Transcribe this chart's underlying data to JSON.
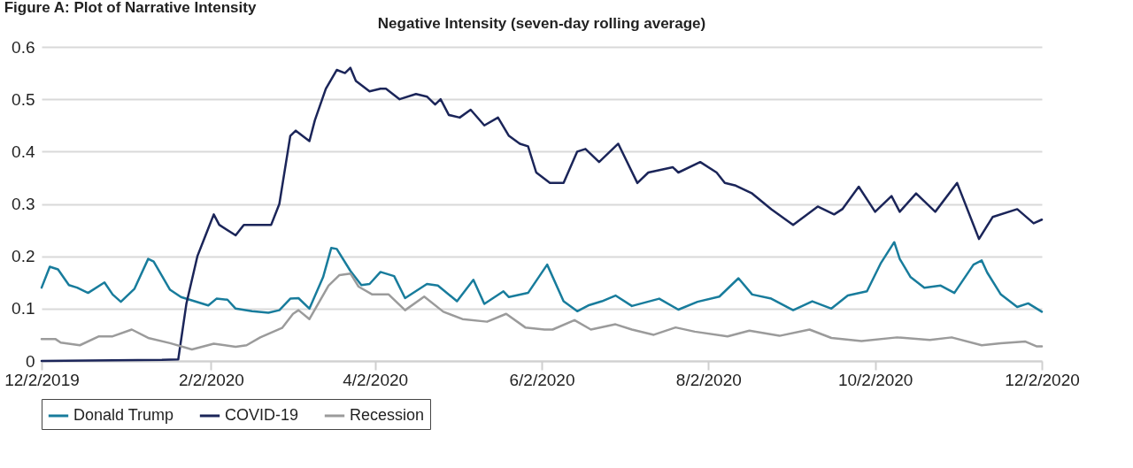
{
  "chart_data": {
    "type": "line",
    "title": "Figure A: Plot of Narrative Intensity",
    "subtitle": "Negative Intensity (seven-day rolling average)",
    "xlim": [
      "2019-12-02",
      "2020-12-02"
    ],
    "xticks": [
      {
        "value": "2019-12-02",
        "label": "12/2/2019"
      },
      {
        "value": "2020-02-02",
        "label": "2/2/2020"
      },
      {
        "value": "2020-04-02",
        "label": "4/2/2020"
      },
      {
        "value": "2020-06-02",
        "label": "6/2/2020"
      },
      {
        "value": "2020-08-02",
        "label": "8/2/2020"
      },
      {
        "value": "2020-10-02",
        "label": "10/2/2020"
      },
      {
        "value": "2020-12-02",
        "label": "12/2/2020"
      }
    ],
    "ylim": [
      0,
      0.6
    ],
    "yticks": [
      0,
      0.1,
      0.2,
      0.3,
      0.4,
      0.5,
      0.6
    ],
    "grid": "y",
    "legend": "bottom",
    "series": [
      {
        "name": "Donald Trump",
        "color": "#187c9c",
        "x": [
          "2019-12-02",
          "2019-12-05",
          "2019-12-08",
          "2019-12-12",
          "2019-12-15",
          "2019-12-19",
          "2019-12-25",
          "2019-12-28",
          "2019-12-31",
          "2020-01-05",
          "2020-01-10",
          "2020-01-12",
          "2020-01-18",
          "2020-01-22",
          "2020-01-27",
          "2020-02-01",
          "2020-02-04",
          "2020-02-08",
          "2020-02-11",
          "2020-02-17",
          "2020-02-23",
          "2020-02-27",
          "2020-03-02",
          "2020-03-05",
          "2020-03-09",
          "2020-03-14",
          "2020-03-17",
          "2020-03-19",
          "2020-03-24",
          "2020-03-28",
          "2020-03-31",
          "2020-04-04",
          "2020-04-09",
          "2020-04-13",
          "2020-04-21",
          "2020-04-25",
          "2020-05-02",
          "2020-05-08",
          "2020-05-12",
          "2020-05-19",
          "2020-05-21",
          "2020-05-28",
          "2020-06-04",
          "2020-06-10",
          "2020-06-15",
          "2020-06-19",
          "2020-06-24",
          "2020-06-29",
          "2020-07-05",
          "2020-07-15",
          "2020-07-22",
          "2020-07-29",
          "2020-08-06",
          "2020-08-13",
          "2020-08-18",
          "2020-08-25",
          "2020-09-02",
          "2020-09-09",
          "2020-09-16",
          "2020-09-22",
          "2020-09-29",
          "2020-10-04",
          "2020-10-09",
          "2020-10-11",
          "2020-10-15",
          "2020-10-20",
          "2020-10-26",
          "2020-10-31",
          "2020-11-07",
          "2020-11-10",
          "2020-11-12",
          "2020-11-17",
          "2020-11-23",
          "2020-11-27",
          "2020-12-02"
        ],
        "values": [
          0.14,
          0.18,
          0.175,
          0.145,
          0.14,
          0.13,
          0.15,
          0.127,
          0.113,
          0.138,
          0.195,
          0.19,
          0.136,
          0.122,
          0.114,
          0.106,
          0.119,
          0.117,
          0.1,
          0.095,
          0.092,
          0.097,
          0.119,
          0.12,
          0.1,
          0.16,
          0.216,
          0.214,
          0.172,
          0.145,
          0.147,
          0.17,
          0.162,
          0.12,
          0.147,
          0.144,
          0.114,
          0.155,
          0.109,
          0.133,
          0.122,
          0.13,
          0.184,
          0.114,
          0.095,
          0.106,
          0.114,
          0.125,
          0.105,
          0.119,
          0.098,
          0.113,
          0.123,
          0.158,
          0.127,
          0.119,
          0.097,
          0.114,
          0.1,
          0.125,
          0.133,
          0.186,
          0.227,
          0.195,
          0.16,
          0.14,
          0.144,
          0.13,
          0.184,
          0.192,
          0.169,
          0.127,
          0.103,
          0.11,
          0.094
        ]
      },
      {
        "name": "COVID-19",
        "color": "#1b2559",
        "x": [
          "2019-12-02",
          "2020-01-15",
          "2020-01-21",
          "2020-01-24",
          "2020-01-28",
          "2020-01-31",
          "2020-02-03",
          "2020-02-05",
          "2020-02-11",
          "2020-02-14",
          "2020-02-20",
          "2020-02-24",
          "2020-02-27",
          "2020-03-02",
          "2020-03-04",
          "2020-03-09",
          "2020-03-11",
          "2020-03-15",
          "2020-03-19",
          "2020-03-22",
          "2020-03-24",
          "2020-03-26",
          "2020-03-31",
          "2020-04-04",
          "2020-04-06",
          "2020-04-11",
          "2020-04-17",
          "2020-04-21",
          "2020-04-24",
          "2020-04-26",
          "2020-04-29",
          "2020-05-03",
          "2020-05-07",
          "2020-05-12",
          "2020-05-17",
          "2020-05-21",
          "2020-05-25",
          "2020-05-28",
          "2020-05-31",
          "2020-06-05",
          "2020-06-10",
          "2020-06-15",
          "2020-06-18",
          "2020-06-23",
          "2020-06-30",
          "2020-07-07",
          "2020-07-11",
          "2020-07-20",
          "2020-07-22",
          "2020-07-30",
          "2020-08-05",
          "2020-08-08",
          "2020-08-12",
          "2020-08-18",
          "2020-08-25",
          "2020-09-02",
          "2020-09-11",
          "2020-09-17",
          "2020-09-20",
          "2020-09-26",
          "2020-10-02",
          "2020-10-08",
          "2020-10-11",
          "2020-10-17",
          "2020-10-24",
          "2020-11-01",
          "2020-11-09",
          "2020-11-14",
          "2020-11-23",
          "2020-11-29",
          "2020-12-02"
        ],
        "values": [
          0,
          0.002,
          0.003,
          0.11,
          0.2,
          0.24,
          0.28,
          0.26,
          0.24,
          0.26,
          0.26,
          0.26,
          0.3,
          0.43,
          0.44,
          0.42,
          0.46,
          0.52,
          0.556,
          0.55,
          0.56,
          0.535,
          0.515,
          0.52,
          0.52,
          0.5,
          0.51,
          0.505,
          0.49,
          0.5,
          0.47,
          0.465,
          0.48,
          0.45,
          0.465,
          0.43,
          0.415,
          0.41,
          0.36,
          0.34,
          0.34,
          0.4,
          0.405,
          0.38,
          0.415,
          0.34,
          0.36,
          0.37,
          0.36,
          0.38,
          0.36,
          0.34,
          0.335,
          0.32,
          0.29,
          0.26,
          0.295,
          0.28,
          0.29,
          0.333,
          0.285,
          0.315,
          0.285,
          0.32,
          0.285,
          0.34,
          0.233,
          0.275,
          0.29,
          0.263,
          0.27
        ]
      },
      {
        "name": "Recession",
        "color": "#9b9b9b",
        "x": [
          "2019-12-02",
          "2019-12-07",
          "2019-12-09",
          "2019-12-16",
          "2019-12-23",
          "2019-12-28",
          "2020-01-04",
          "2020-01-10",
          "2020-01-18",
          "2020-01-26",
          "2020-02-03",
          "2020-02-11",
          "2020-02-15",
          "2020-02-20",
          "2020-02-28",
          "2020-03-03",
          "2020-03-05",
          "2020-03-09",
          "2020-03-16",
          "2020-03-20",
          "2020-03-24",
          "2020-03-27",
          "2020-04-01",
          "2020-04-07",
          "2020-04-13",
          "2020-04-20",
          "2020-04-27",
          "2020-05-04",
          "2020-05-13",
          "2020-05-20",
          "2020-05-27",
          "2020-06-03",
          "2020-06-06",
          "2020-06-14",
          "2020-06-20",
          "2020-06-29",
          "2020-07-05",
          "2020-07-13",
          "2020-07-21",
          "2020-07-28",
          "2020-08-09",
          "2020-08-17",
          "2020-08-28",
          "2020-09-08",
          "2020-09-16",
          "2020-09-27",
          "2020-10-10",
          "2020-10-22",
          "2020-10-30",
          "2020-11-10",
          "2020-11-17",
          "2020-11-26",
          "2020-11-30",
          "2020-12-02"
        ],
        "values": [
          0.042,
          0.042,
          0.035,
          0.03,
          0.047,
          0.047,
          0.06,
          0.044,
          0.034,
          0.022,
          0.033,
          0.027,
          0.03,
          0.045,
          0.063,
          0.09,
          0.097,
          0.08,
          0.144,
          0.164,
          0.167,
          0.142,
          0.127,
          0.127,
          0.097,
          0.123,
          0.094,
          0.08,
          0.075,
          0.09,
          0.064,
          0.06,
          0.06,
          0.078,
          0.06,
          0.07,
          0.06,
          0.05,
          0.064,
          0.056,
          0.047,
          0.058,
          0.048,
          0.06,
          0.044,
          0.038,
          0.045,
          0.04,
          0.045,
          0.03,
          0.034,
          0.037,
          0.028,
          0.028
        ]
      }
    ]
  }
}
